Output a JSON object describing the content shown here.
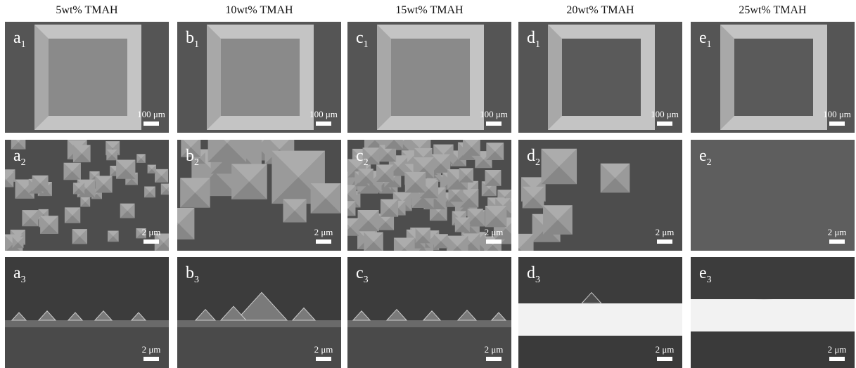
{
  "columns": [
    {
      "title": "5wt% TMAH",
      "panels": [
        {
          "letter": "a",
          "sub": "1",
          "scale": "100 μm"
        },
        {
          "letter": "a",
          "sub": "2",
          "scale": "2 μm"
        },
        {
          "letter": "a",
          "sub": "3",
          "scale": "2 μm"
        }
      ]
    },
    {
      "title": "10wt% TMAH",
      "panels": [
        {
          "letter": "b",
          "sub": "1",
          "scale": "100 μm"
        },
        {
          "letter": "b",
          "sub": "2",
          "scale": "2 μm"
        },
        {
          "letter": "b",
          "sub": "3",
          "scale": "2 μm"
        }
      ]
    },
    {
      "title": "15wt% TMAH",
      "panels": [
        {
          "letter": "c",
          "sub": "1",
          "scale": "100 μm"
        },
        {
          "letter": "c",
          "sub": "2",
          "scale": "2 μm"
        },
        {
          "letter": "c",
          "sub": "3",
          "scale": "2 μm"
        }
      ]
    },
    {
      "title": "20wt% TMAH",
      "panels": [
        {
          "letter": "d",
          "sub": "1",
          "scale": "100 μm"
        },
        {
          "letter": "d",
          "sub": "2",
          "scale": "2 μm"
        },
        {
          "letter": "d",
          "sub": "3",
          "scale": "2 μm"
        }
      ]
    },
    {
      "title": "25wt% TMAH",
      "panels": [
        {
          "letter": "e",
          "sub": "1",
          "scale": "100 μm"
        },
        {
          "letter": "e",
          "sub": "2",
          "scale": "2 μm"
        },
        {
          "letter": "e",
          "sub": "3",
          "scale": "2 μm"
        }
      ]
    }
  ]
}
